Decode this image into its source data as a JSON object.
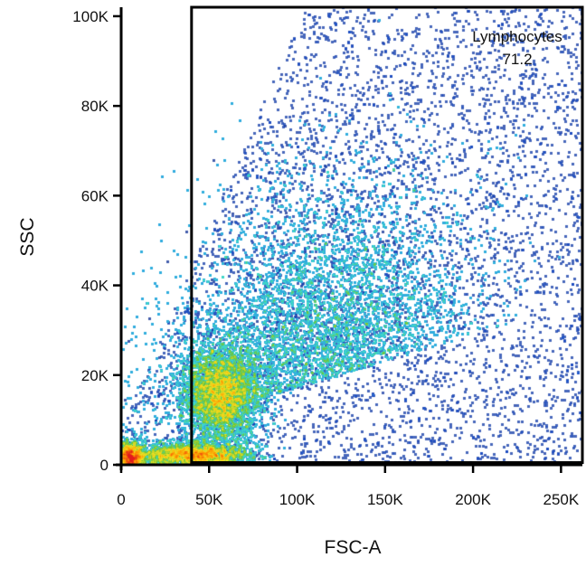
{
  "chart_data": {
    "type": "heatmap",
    "subtype": "flow-cytometry-density-scatter",
    "xlabel": "FSC-A",
    "ylabel": "SSC",
    "xlim": [
      0,
      262144
    ],
    "ylim": [
      0,
      102000
    ],
    "x_ticks": [
      {
        "value": 0,
        "label": "0"
      },
      {
        "value": 50000,
        "label": "50K"
      },
      {
        "value": 100000,
        "label": "100K"
      },
      {
        "value": 150000,
        "label": "150K"
      },
      {
        "value": 200000,
        "label": "200K"
      },
      {
        "value": 250000,
        "label": "250K"
      }
    ],
    "y_ticks": [
      {
        "value": 0,
        "label": "0"
      },
      {
        "value": 20000,
        "label": "20K"
      },
      {
        "value": 40000,
        "label": "40K"
      },
      {
        "value": 60000,
        "label": "60K"
      },
      {
        "value": 80000,
        "label": "80K"
      },
      {
        "value": 100000,
        "label": "100K"
      }
    ],
    "gate": {
      "name": "Lymphocytes",
      "value": "71.2",
      "x_range": [
        40000,
        262144
      ],
      "y_range": [
        500,
        102000
      ]
    },
    "density_clusters": [
      {
        "x": 57000,
        "y": 15500,
        "sx": 11000,
        "sy": 5500,
        "weight": 0.3
      },
      {
        "x": 40000,
        "y": 2200,
        "sx": 16000,
        "sy": 1300,
        "weight": 0.2
      },
      {
        "x": 5000,
        "y": 1500,
        "sx": 3500,
        "sy": 1800,
        "weight": 0.12
      },
      {
        "x": 110000,
        "y": 33000,
        "sx": 42000,
        "sy": 20000,
        "weight": 0.38
      }
    ],
    "colormap": [
      "#0b2a8a",
      "#2255cc",
      "#2fa8e0",
      "#3ed6c8",
      "#6cc43a",
      "#f0e020",
      "#ff9a00",
      "#e31a1c"
    ]
  }
}
